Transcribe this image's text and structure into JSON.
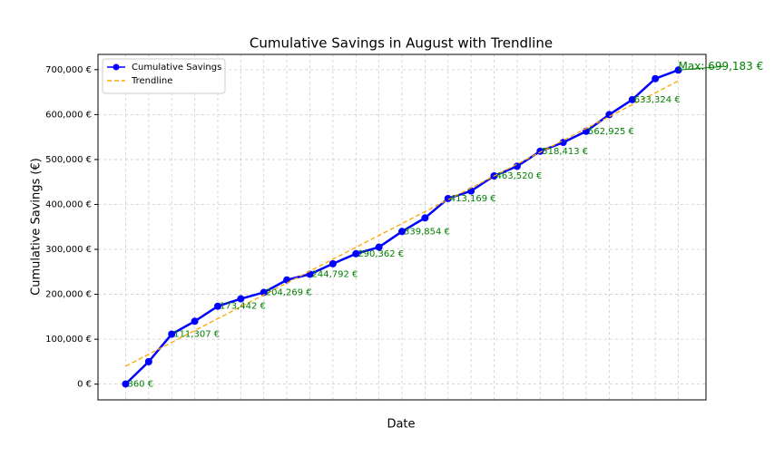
{
  "chart_data": {
    "type": "line",
    "title": "Cumulative Savings in August with Trendline",
    "xlabel": "Date",
    "ylabel": "Cumulative Savings (€)",
    "x": [
      0,
      1,
      2,
      3,
      4,
      5,
      6,
      7,
      8,
      9,
      10,
      11,
      12,
      13,
      14,
      15,
      16,
      17,
      18,
      19,
      20,
      21,
      22,
      23,
      24
    ],
    "series": [
      {
        "name": "Cumulative Savings",
        "color": "#0000ff",
        "style": "solid-marker",
        "values": [
          360,
          50000,
          111307,
          140000,
          173442,
          190000,
          204269,
          232000,
          244792,
          268000,
          290362,
          305000,
          339854,
          370000,
          413169,
          430000,
          463520,
          485000,
          518413,
          538000,
          562925,
          600000,
          633324,
          680000,
          699183
        ]
      },
      {
        "name": "Trendline",
        "color": "#ffa500",
        "style": "dashed",
        "x": [
          0,
          24
        ],
        "values": [
          40000,
          675000
        ]
      }
    ],
    "annotations": [
      {
        "x": 0,
        "y": 360,
        "label": "360 €"
      },
      {
        "x": 2,
        "y": 111307,
        "label": "111,307 €"
      },
      {
        "x": 4,
        "y": 173442,
        "label": "173,442 €"
      },
      {
        "x": 6,
        "y": 204269,
        "label": "204,269 €"
      },
      {
        "x": 8,
        "y": 244792,
        "label": "244,792 €"
      },
      {
        "x": 10,
        "y": 290362,
        "label": "290,362 €"
      },
      {
        "x": 12,
        "y": 339854,
        "label": "339,854 €"
      },
      {
        "x": 14,
        "y": 413169,
        "label": "413,169 €"
      },
      {
        "x": 16,
        "y": 463520,
        "label": "463,520 €"
      },
      {
        "x": 18,
        "y": 518413,
        "label": "518,413 €"
      },
      {
        "x": 20,
        "y": 562925,
        "label": "562,925 €"
      },
      {
        "x": 22,
        "y": 633324,
        "label": "633,324 €"
      }
    ],
    "max_annotation": {
      "x": 24,
      "y": 699183,
      "label": "Max: 699,183 €"
    },
    "xlim": [
      -1.2,
      25.2
    ],
    "ylim": [
      -35000,
      734000
    ],
    "yticks": [
      {
        "value": 0,
        "label": "0 €"
      },
      {
        "value": 100000,
        "label": "100,000 €"
      },
      {
        "value": 200000,
        "label": "200,000 €"
      },
      {
        "value": 300000,
        "label": "300,000 €"
      },
      {
        "value": 400000,
        "label": "400,000 €"
      },
      {
        "value": 500000,
        "label": "500,000 €"
      },
      {
        "value": 600000,
        "label": "600,000 €"
      },
      {
        "value": 700000,
        "label": "700,000 €"
      }
    ],
    "grid": true,
    "legend": "upper left"
  }
}
